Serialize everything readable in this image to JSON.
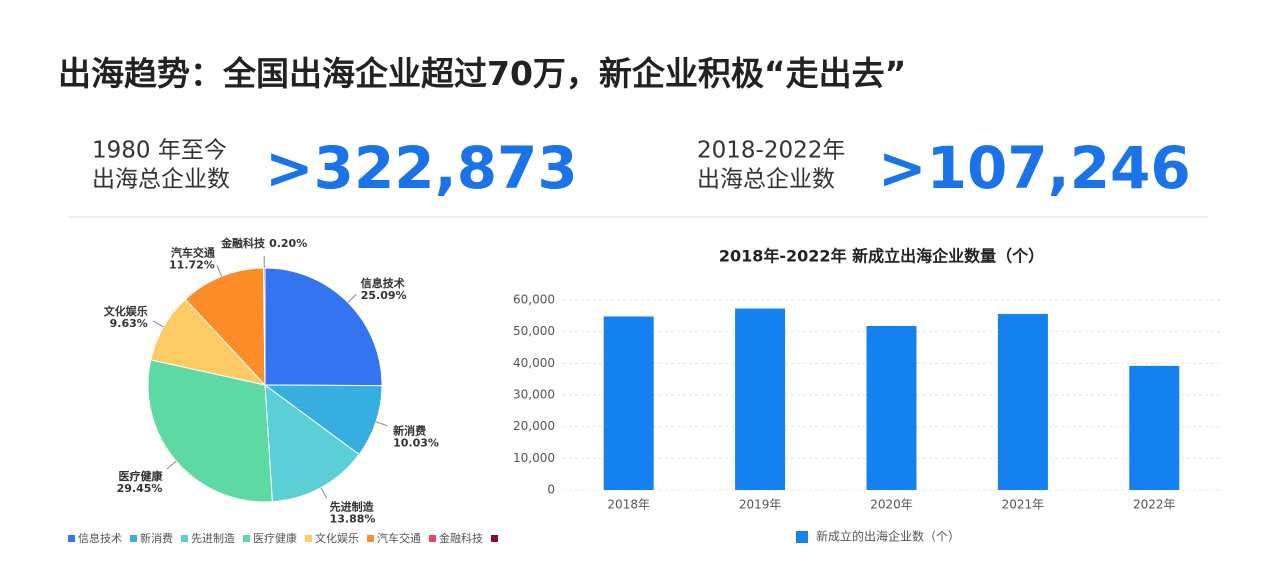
{
  "header": {
    "title": "出海趋势：全国出海企业超过70万，新企业积极“走出去”"
  },
  "stats": [
    {
      "label_lines": [
        "1980 年至今",
        "出海总企业数"
      ],
      "value": ">322,873"
    },
    {
      "label_lines": [
        "2018-2022年",
        "出海总企业数"
      ],
      "value": ">107,246"
    }
  ],
  "chart_data": [
    {
      "type": "pie",
      "categories": [
        "信息技术",
        "新消费",
        "先进制造",
        "医疗健康",
        "文化娱乐",
        "汽车交通",
        "金融科技"
      ],
      "values": [
        25.09,
        10.03,
        13.88,
        29.45,
        9.63,
        11.72,
        0.2
      ],
      "value_labels": [
        "25.09%",
        "10.03%",
        "13.88%",
        "29.45%",
        "9.63%",
        "11.72%",
        "0.20%"
      ],
      "colors": [
        "#3574f0",
        "#36aee0",
        "#5ccfd6",
        "#5fd9a4",
        "#fdcb63",
        "#fb8d29",
        "#e04a5f"
      ],
      "legend": "bottom"
    },
    {
      "type": "bar",
      "title": "2018年-2022年 新成立出海企业数量（个）",
      "categories": [
        "2018年",
        "2019年",
        "2020年",
        "2021年",
        "2022年"
      ],
      "series": [
        {
          "name": "新成立的出海企业数（个）",
          "color": "#1580f0",
          "values": [
            54800,
            57300,
            51800,
            55600,
            39200
          ]
        }
      ],
      "ylim": [
        0,
        60000
      ],
      "yticks": [
        0,
        {
          "value": 10000,
          "label": "10,000"
        },
        {
          "value": 20000,
          "label": "20,000"
        },
        {
          "value": 30000,
          "label": "30,000"
        },
        {
          "value": 40000,
          "label": "40,000"
        },
        {
          "value": 50000,
          "label": "50,000"
        },
        {
          "value": 60000,
          "label": "60,000"
        }
      ],
      "grid": true,
      "legend": "bottom"
    }
  ]
}
